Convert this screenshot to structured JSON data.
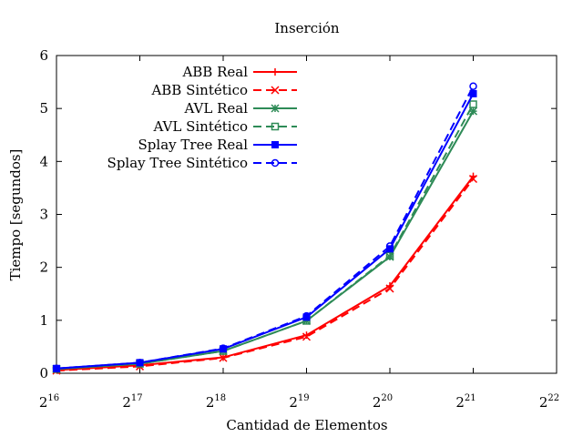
{
  "chart_data": {
    "type": "line",
    "title": "Inserción",
    "xlabel": "Cantidad de Elementos",
    "ylabel": "Tiempo [segundos]",
    "x_scale": "log2",
    "x_tick_base": "2",
    "x_ticks": [
      "16",
      "17",
      "18",
      "19",
      "20",
      "21",
      "22"
    ],
    "xlim": [
      65536,
      4194304
    ],
    "y_ticks": [
      "0",
      "1",
      "2",
      "3",
      "4",
      "5",
      "6"
    ],
    "ylim": [
      0,
      6
    ],
    "grid": false,
    "legend_position": "top-center",
    "x": [
      65536,
      131072,
      262144,
      524288,
      1048576,
      2097152
    ],
    "series": [
      {
        "name": "ABB Real",
        "color": "#ff0000",
        "dash": "solid",
        "marker": "plus",
        "values": [
          0.06,
          0.15,
          0.3,
          0.72,
          1.65,
          3.72
        ]
      },
      {
        "name": "ABB Sintético",
        "color": "#ff0000",
        "dash": "dashed",
        "marker": "cross",
        "values": [
          0.05,
          0.13,
          0.29,
          0.69,
          1.6,
          3.67
        ]
      },
      {
        "name": "AVL Real",
        "color": "#2e8b57",
        "dash": "solid",
        "marker": "star",
        "values": [
          0.08,
          0.18,
          0.42,
          0.99,
          2.2,
          4.95
        ]
      },
      {
        "name": "AVL Sintético",
        "color": "#2e8b57",
        "dash": "dashed",
        "marker": "open-square",
        "values": [
          0.08,
          0.18,
          0.42,
          0.99,
          2.22,
          5.08
        ]
      },
      {
        "name": "Splay Tree Real",
        "color": "#0000ff",
        "dash": "solid",
        "marker": "filled-square",
        "values": [
          0.09,
          0.2,
          0.46,
          1.06,
          2.35,
          5.28
        ]
      },
      {
        "name": "Splay Tree Sintético",
        "color": "#0000ff",
        "dash": "dashed",
        "marker": "open-circle",
        "values": [
          0.09,
          0.2,
          0.47,
          1.08,
          2.4,
          5.42
        ]
      }
    ]
  }
}
